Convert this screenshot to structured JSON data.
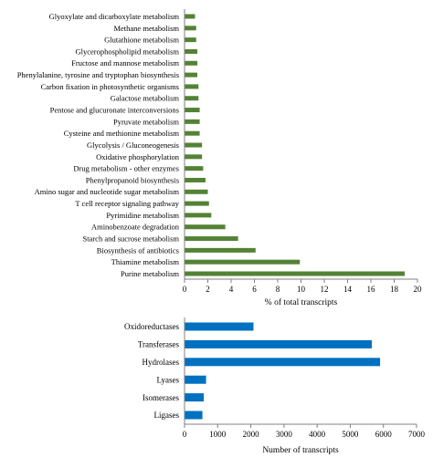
{
  "chart_data": [
    {
      "type": "bar",
      "orientation": "horizontal",
      "categories": [
        "Glyoxylate and dicarboxylate metabolism",
        "Methane metabolism",
        "Glutathione metabolism",
        "Glycerophospholipid metabolism",
        "Fructose and mannose metabolism",
        "Phenylalanine, tyrosine and tryptophan biosynthesis",
        "Carbon fixation in photosynthetic organisms",
        "Galactose metabolism",
        "Pentose and glucuronate interconversions",
        "Pyruvate metabolism",
        "Cysteine and methionine metabolism",
        "Glycolysis / Gluconeogenesis",
        "Oxidative phosphorylation",
        "Drug metabolism - other enzymes",
        "Phenylpropanoid biosynthesis",
        "Amino sugar and nucleotide sugar metabolism",
        "T cell receptor signaling pathway",
        "Pyrimidine metabolism",
        "Aminobenzoate degradation",
        "Starch and sucrose metabolism",
        "Biosynthesis of antibiotics",
        "Thiamine metabolism",
        "Purine metabolism"
      ],
      "values": [
        0.9,
        1.0,
        1.0,
        1.1,
        1.1,
        1.1,
        1.2,
        1.2,
        1.3,
        1.3,
        1.3,
        1.5,
        1.5,
        1.6,
        1.8,
        2.0,
        2.1,
        2.3,
        3.5,
        4.6,
        6.1,
        9.9,
        18.9
      ],
      "xlabel": "% of total transcripts",
      "xlim": [
        0,
        20
      ],
      "xticks": [
        0,
        2,
        4,
        6,
        8,
        10,
        12,
        14,
        16,
        18,
        20
      ],
      "color": "#548235",
      "grid": false
    },
    {
      "type": "bar",
      "orientation": "horizontal",
      "categories": [
        "Oxidoreductases",
        "Transferases",
        "Hydrolases",
        "Lyases",
        "Isomerases",
        "Ligases"
      ],
      "values": [
        2080,
        5650,
        5900,
        650,
        580,
        540
      ],
      "xlabel": "Number of transcripts",
      "xlim": [
        0,
        7000
      ],
      "xticks": [
        0,
        1000,
        2000,
        3000,
        4000,
        5000,
        6000,
        7000
      ],
      "color": "#0070C0",
      "grid": false
    }
  ]
}
